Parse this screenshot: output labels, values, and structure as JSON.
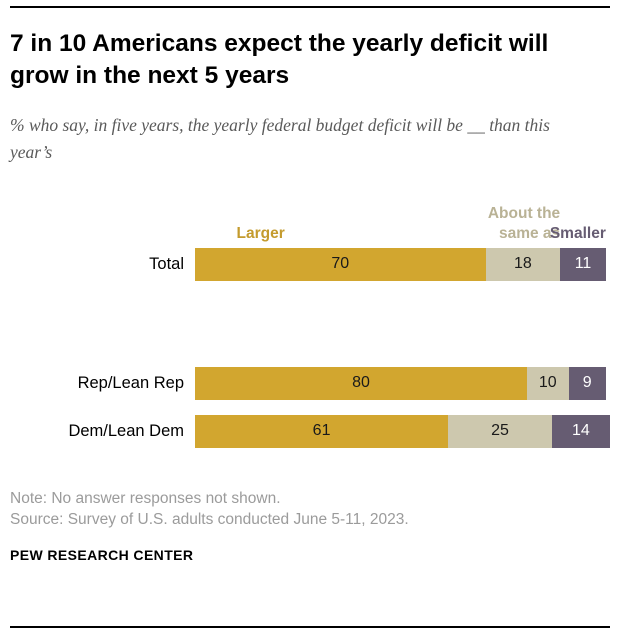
{
  "title": "7 in 10 Americans expect the yearly deficit will grow in the next 5 years",
  "subtitle": "% who say, in five years, the yearly federal budget deficit will be __ than this year’s",
  "chart_data": {
    "type": "bar",
    "orientation": "horizontal",
    "stacked": true,
    "unit": "percent",
    "categories": [
      "Total",
      "Rep/Lean Rep",
      "Dem/Lean Dem"
    ],
    "series": [
      {
        "name": "Larger",
        "color": "#d2a62f",
        "label_color": "#c49b2d",
        "value_text_color": "#1a1a1a",
        "values": [
          70,
          80,
          61
        ]
      },
      {
        "name": "About the same as",
        "color": "#cdc8ae",
        "label_color": "#b9b295",
        "value_text_color": "#1a1a1a",
        "values": [
          18,
          10,
          25
        ]
      },
      {
        "name": "Smaller",
        "color": "#665c72",
        "label_color": "#665c72",
        "value_text_color": "#ffffff",
        "values": [
          11,
          9,
          14
        ]
      }
    ],
    "legend_position": "top",
    "grid": false,
    "xlim": [
      0,
      100
    ]
  },
  "note": "Note: No answer responses not shown.",
  "source": "Source: Survey of U.S. adults conducted June 5-11, 2023.",
  "footer": "PEW RESEARCH CENTER"
}
